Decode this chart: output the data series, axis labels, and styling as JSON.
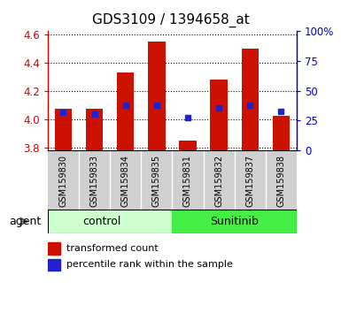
{
  "title": "GDS3109 / 1394658_at",
  "samples": [
    "GSM159830",
    "GSM159833",
    "GSM159834",
    "GSM159835",
    "GSM159831",
    "GSM159832",
    "GSM159837",
    "GSM159838"
  ],
  "bar_tops": [
    4.07,
    4.07,
    4.33,
    4.55,
    3.85,
    4.28,
    4.5,
    4.02
  ],
  "bar_bottom": 3.78,
  "blue_dot_y": [
    4.045,
    4.035,
    4.1,
    4.1,
    4.01,
    4.08,
    4.1,
    4.055
  ],
  "ylim": [
    3.78,
    4.62
  ],
  "y_ticks": [
    3.8,
    4.0,
    4.2,
    4.4,
    4.6
  ],
  "right_yticks_pct": [
    0,
    25,
    50,
    75,
    100
  ],
  "right_ytick_labels": [
    "0",
    "25",
    "50",
    "75",
    "100%"
  ],
  "group_labels": [
    "control",
    "Sunitinib"
  ],
  "control_count": 4,
  "sunitinib_count": 4,
  "control_bg": "#ccffcc",
  "sunitinib_bg": "#44ee44",
  "sample_bg": "#d0d0d0",
  "bar_color": "#cc1100",
  "dot_color": "#2222cc",
  "bar_width": 0.55,
  "title_fontsize": 11,
  "tick_color_left": "#cc0000",
  "tick_color_right": "#0000cc",
  "legend_red_label": "transformed count",
  "legend_blue_label": "percentile rank within the sample",
  "agent_label": "agent"
}
